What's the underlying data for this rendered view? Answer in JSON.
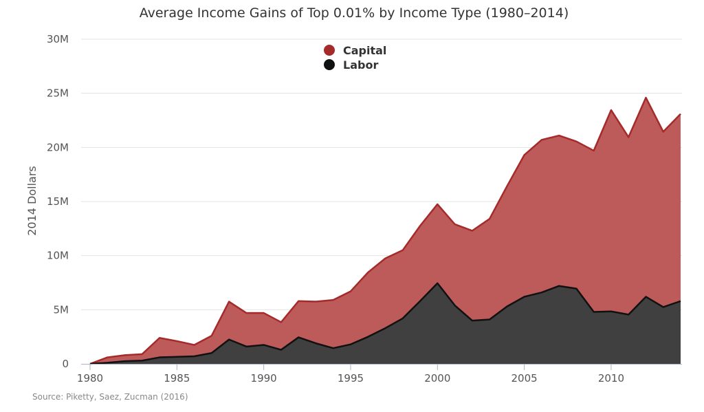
{
  "chart_data": {
    "type": "area",
    "stacked": true,
    "title": "Average Income Gains of Top 0.01% by Income Type (1980–2014)",
    "ylabel": "2014 Dollars",
    "xlabel": "",
    "xlim": [
      1980,
      2014
    ],
    "ylim": [
      0,
      30000000
    ],
    "x_ticks": [
      1980,
      1985,
      1990,
      1995,
      2000,
      2005,
      2010
    ],
    "x_tick_labels": [
      "1980",
      "1985",
      "1990",
      "1995",
      "2000",
      "2005",
      "2010"
    ],
    "y_ticks": [
      0,
      5000000,
      10000000,
      15000000,
      20000000,
      25000000,
      30000000
    ],
    "y_tick_labels": [
      "0",
      "5M",
      "10M",
      "15M",
      "20M",
      "25M",
      "30M"
    ],
    "grid": true,
    "legend_position": "top-center",
    "source": "Source: Piketty, Saez, Zucman (2016)",
    "x": [
      1980,
      1981,
      1982,
      1983,
      1984,
      1985,
      1986,
      1987,
      1988,
      1989,
      1990,
      1991,
      1992,
      1993,
      1994,
      1995,
      1996,
      1997,
      1998,
      1999,
      2000,
      2001,
      2002,
      2003,
      2004,
      2005,
      2006,
      2007,
      2008,
      2009,
      2010,
      2011,
      2012,
      2013,
      2014
    ],
    "series": [
      {
        "name": "Labor",
        "color": "#111111",
        "fill": "#404040",
        "values": [
          0,
          100000,
          250000,
          300000,
          600000,
          650000,
          700000,
          1000000,
          2250000,
          1600000,
          1750000,
          1300000,
          2450000,
          1900000,
          1450000,
          1800000,
          2500000,
          3300000,
          4200000,
          5800000,
          7450000,
          5400000,
          4000000,
          4100000,
          5300000,
          6200000,
          6600000,
          7200000,
          6950000,
          4800000,
          4850000,
          4550000,
          6200000,
          5250000,
          5800000
        ]
      },
      {
        "name": "Capital",
        "color": "#a52a2a",
        "fill": "#bd5a5a",
        "values": [
          0,
          500000,
          550000,
          600000,
          1800000,
          1450000,
          1050000,
          1600000,
          3500000,
          3100000,
          2950000,
          2550000,
          3350000,
          3850000,
          4450000,
          4900000,
          5950000,
          6450000,
          6300000,
          6950000,
          7300000,
          7500000,
          8300000,
          9300000,
          11100000,
          13100000,
          14100000,
          13900000,
          13600000,
          14900000,
          18600000,
          16400000,
          18400000,
          16200000,
          17300000
        ]
      }
    ]
  }
}
